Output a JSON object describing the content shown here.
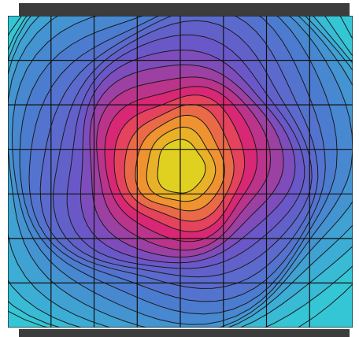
{
  "chart_data": {
    "type": "heatmap",
    "style": "filled-contour",
    "title": "",
    "xlabel": "",
    "ylabel": "",
    "grid": true,
    "grid_cols": 8,
    "grid_rows": 7,
    "peak": {
      "col": 4,
      "row": 3.4
    },
    "contour_levels": 20,
    "colormap": {
      "low": "#35c6d6",
      "mid_low": "#4a7fd0",
      "mid": "#6d54c8",
      "mid_high": "#e0246e",
      "high": "#f0962e",
      "peak": "#e0d020"
    },
    "frame_color": "#3c3c3c",
    "edge_color": "#54dcea"
  }
}
